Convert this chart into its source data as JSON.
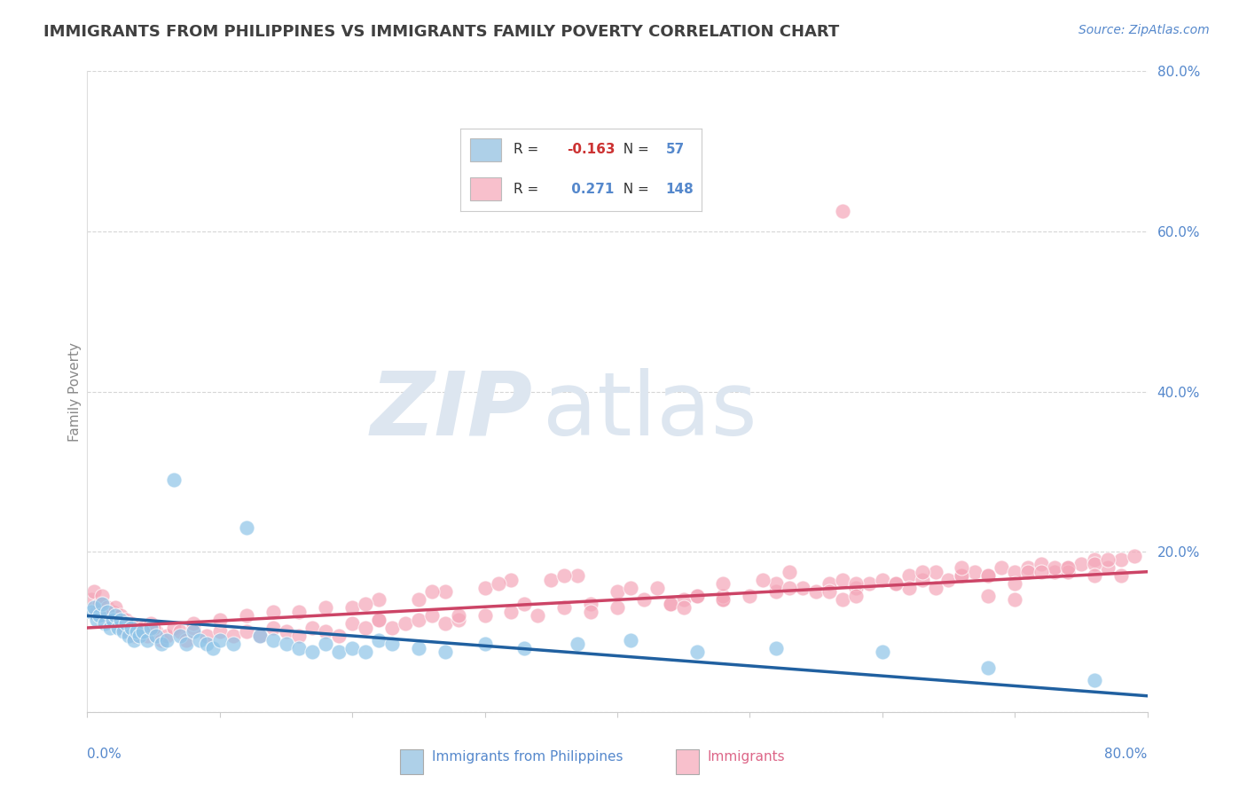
{
  "title": "IMMIGRANTS FROM PHILIPPINES VS IMMIGRANTS FAMILY POVERTY CORRELATION CHART",
  "source": "Source: ZipAtlas.com",
  "ylabel": "Family Poverty",
  "legend_labels": [
    "Immigrants from Philippines",
    "Immigrants"
  ],
  "legend_R": [
    -0.163,
    0.271
  ],
  "legend_N": [
    57,
    148
  ],
  "blue_color": "#8ec4e8",
  "pink_color": "#f4a6b8",
  "blue_line_color": "#2060a0",
  "pink_line_color": "#cc4466",
  "blue_fill": "#aed0e8",
  "pink_fill": "#f8c0cc",
  "blue_trend_start": 12.0,
  "blue_trend_end": 2.0,
  "pink_trend_start": 10.5,
  "pink_trend_end": 17.5,
  "xlim": [
    0,
    80
  ],
  "ylim": [
    0,
    80
  ],
  "yticks": [
    0,
    20,
    40,
    60,
    80
  ],
  "ytick_labels": [
    "",
    "20.0%",
    "40.0%",
    "60.0%",
    "80.0%"
  ],
  "grid_color": "#cccccc",
  "bg_color": "#ffffff",
  "title_color": "#404040",
  "axis_color": "#5588cc",
  "watermark_color": "#dde6f0",
  "blue_scatter_x": [
    0.3,
    0.5,
    0.7,
    0.9,
    1.1,
    1.3,
    1.5,
    1.7,
    1.9,
    2.1,
    2.3,
    2.5,
    2.7,
    2.9,
    3.1,
    3.3,
    3.5,
    3.7,
    3.9,
    4.2,
    4.5,
    4.8,
    5.2,
    5.6,
    6.0,
    6.5,
    7.0,
    7.5,
    8.0,
    8.5,
    9.0,
    9.5,
    10.0,
    11.0,
    12.0,
    13.0,
    14.0,
    15.0,
    16.0,
    17.0,
    18.0,
    19.0,
    20.0,
    21.0,
    22.0,
    23.0,
    25.0,
    27.0,
    30.0,
    33.0,
    37.0,
    41.0,
    46.0,
    52.0,
    60.0,
    68.0,
    76.0
  ],
  "blue_scatter_y": [
    12.5,
    13.0,
    11.5,
    12.0,
    13.5,
    11.0,
    12.5,
    10.5,
    11.5,
    12.0,
    10.5,
    11.5,
    10.0,
    11.0,
    9.5,
    10.5,
    9.0,
    10.0,
    9.5,
    10.0,
    9.0,
    10.5,
    9.5,
    8.5,
    9.0,
    29.0,
    9.5,
    8.5,
    10.0,
    9.0,
    8.5,
    8.0,
    9.0,
    8.5,
    23.0,
    9.5,
    9.0,
    8.5,
    8.0,
    7.5,
    8.5,
    7.5,
    8.0,
    7.5,
    9.0,
    8.5,
    8.0,
    7.5,
    8.5,
    8.0,
    8.5,
    9.0,
    7.5,
    8.0,
    7.5,
    5.5,
    4.0
  ],
  "pink_scatter_x": [
    0.3,
    0.5,
    0.7,
    0.9,
    1.1,
    1.3,
    1.5,
    1.7,
    1.9,
    2.1,
    2.3,
    2.5,
    2.7,
    2.9,
    3.1,
    3.3,
    3.5,
    3.7,
    3.9,
    4.2,
    4.5,
    4.8,
    5.2,
    5.6,
    6.0,
    6.5,
    7.0,
    7.5,
    8.0,
    9.0,
    10.0,
    11.0,
    12.0,
    13.0,
    14.0,
    15.0,
    16.0,
    17.0,
    18.0,
    19.0,
    20.0,
    21.0,
    22.0,
    23.0,
    24.0,
    25.0,
    26.0,
    27.0,
    28.0,
    30.0,
    32.0,
    34.0,
    36.0,
    38.0,
    40.0,
    42.0,
    44.0,
    45.0,
    46.0,
    48.0,
    50.0,
    52.0,
    54.0,
    55.0,
    56.0,
    57.0,
    58.0,
    59.0,
    60.0,
    61.0,
    62.0,
    63.0,
    64.0,
    65.0,
    66.0,
    67.0,
    68.0,
    69.0,
    70.0,
    71.0,
    72.0,
    73.0,
    74.0,
    75.0,
    76.0,
    77.0,
    78.0,
    79.0,
    20.0,
    25.0,
    30.0,
    35.0,
    40.0,
    44.0,
    48.0,
    52.0,
    57.0,
    62.0,
    66.0,
    70.0,
    74.0,
    10.0,
    14.0,
    18.0,
    22.0,
    27.0,
    32.0,
    37.0,
    43.0,
    48.0,
    53.0,
    58.0,
    63.0,
    68.0,
    73.0,
    78.0,
    5.0,
    8.0,
    12.0,
    16.0,
    21.0,
    26.0,
    31.0,
    36.0,
    41.0,
    46.0,
    51.0,
    56.0,
    61.0,
    66.0,
    71.0,
    76.0,
    57.0,
    33.0,
    28.0,
    45.0,
    53.0,
    68.0,
    72.0,
    76.0,
    22.0,
    38.0,
    48.0,
    58.0,
    64.0,
    70.0,
    74.0,
    77.0
  ],
  "pink_scatter_y": [
    14.0,
    15.0,
    12.5,
    13.5,
    14.5,
    12.0,
    13.0,
    11.5,
    12.5,
    13.0,
    11.0,
    12.0,
    10.5,
    11.5,
    10.0,
    11.0,
    9.5,
    10.5,
    10.0,
    10.5,
    9.5,
    11.0,
    10.0,
    9.0,
    9.5,
    10.5,
    10.0,
    9.0,
    10.5,
    9.5,
    10.0,
    9.5,
    10.0,
    9.5,
    10.5,
    10.0,
    9.5,
    10.5,
    10.0,
    9.5,
    11.0,
    10.5,
    11.5,
    10.5,
    11.0,
    11.5,
    12.0,
    11.0,
    11.5,
    12.0,
    12.5,
    12.0,
    13.0,
    13.5,
    13.0,
    14.0,
    13.5,
    14.0,
    14.5,
    14.0,
    14.5,
    15.0,
    15.5,
    15.0,
    16.0,
    62.5,
    15.5,
    16.0,
    16.5,
    16.0,
    17.0,
    16.5,
    17.5,
    16.5,
    17.0,
    17.5,
    17.0,
    18.0,
    17.5,
    18.0,
    18.5,
    17.5,
    18.0,
    18.5,
    19.0,
    18.0,
    19.0,
    19.5,
    13.0,
    14.0,
    15.5,
    16.5,
    15.0,
    13.5,
    14.5,
    16.0,
    16.5,
    15.5,
    17.0,
    16.0,
    17.5,
    11.5,
    12.5,
    13.0,
    14.0,
    15.0,
    16.5,
    17.0,
    15.5,
    16.0,
    17.5,
    16.0,
    17.5,
    17.0,
    18.0,
    17.0,
    10.5,
    11.0,
    12.0,
    12.5,
    13.5,
    15.0,
    16.0,
    17.0,
    15.5,
    14.5,
    16.5,
    15.0,
    16.0,
    18.0,
    17.5,
    18.5,
    14.0,
    13.5,
    12.0,
    13.0,
    15.5,
    14.5,
    17.5,
    17.0,
    11.5,
    12.5,
    14.0,
    14.5,
    15.5,
    14.0,
    18.0,
    19.0
  ]
}
